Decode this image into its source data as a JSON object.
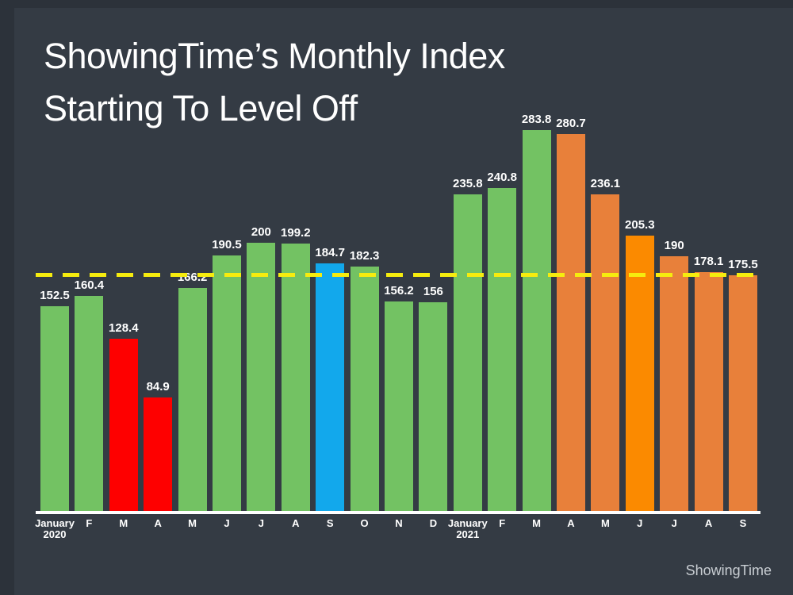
{
  "header": {
    "title_line1": "ShowingTime’s Monthly Index",
    "title_line2": "Starting To Level Off"
  },
  "footer": {
    "logo_text": "ShowingTime"
  },
  "chart_data": {
    "type": "bar",
    "title": "ShowingTime’s Monthly Index Starting To Level Off",
    "categories": [
      "January\n2020",
      "F",
      "M",
      "A",
      "M",
      "J",
      "J",
      "A",
      "S",
      "O",
      "N",
      "D",
      "January\n2021",
      "F",
      "M",
      "A",
      "M",
      "J",
      "J",
      "A",
      "S"
    ],
    "values": [
      152.5,
      160.4,
      128.4,
      84.9,
      166.2,
      190.5,
      200,
      199.2,
      184.7,
      182.3,
      156.2,
      156,
      235.8,
      240.8,
      283.8,
      280.7,
      236.1,
      205.3,
      190,
      178.1,
      175.5
    ],
    "bar_colors": [
      "green",
      "green",
      "red",
      "red",
      "green",
      "green",
      "green",
      "green",
      "blue",
      "green",
      "green",
      "green",
      "green",
      "green",
      "green",
      "orange",
      "orange",
      "bright_orange",
      "orange",
      "orange",
      "orange"
    ],
    "palette": {
      "green": "#73c263",
      "red": "#fe0000",
      "blue": "#12a8ec",
      "orange": "#e8803a",
      "bright_orange": "#fb8a00",
      "reference_yellow": "#f6ec0e",
      "axis_white": "#ffffff",
      "background": "#343b44"
    },
    "reference_line": {
      "value": 176.5,
      "style": "dashed",
      "color": "#f6ec0e"
    },
    "ylim": [
      0,
      292
    ],
    "xlabel": "",
    "ylabel": "",
    "value_labels": true,
    "grid": false,
    "legend": false
  }
}
